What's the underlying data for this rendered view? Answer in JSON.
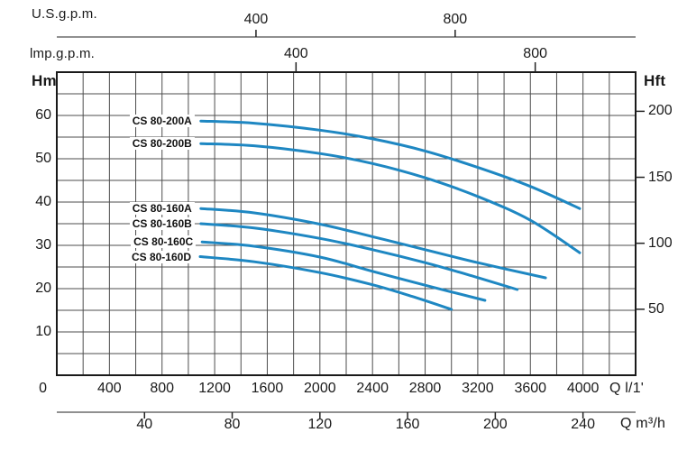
{
  "colors": {
    "curve": "#1e87c2",
    "grid": "#4d4d4d",
    "frame": "#1a1a1a",
    "tick": "#222222",
    "background": "#ffffff"
  },
  "axes": {
    "us_gpm": {
      "label": "U.S.g.p.m.",
      "ticks": [
        400,
        800
      ]
    },
    "imp_gpm": {
      "label": "lmp.g.p.m.",
      "ticks": [
        400,
        800
      ]
    },
    "head_m": {
      "label": "Hm",
      "ticks": [
        10,
        20,
        30,
        40,
        50,
        60
      ],
      "zero_label": "0"
    },
    "head_ft": {
      "label": "Hft",
      "ticks": [
        50,
        100,
        150,
        200
      ]
    },
    "flow_lmin": {
      "label": "Q l/1'",
      "ticks": [
        400,
        800,
        1200,
        1600,
        2000,
        2400,
        2800,
        3200,
        3600,
        4000
      ]
    },
    "flow_m3h": {
      "label": "Q m³/h",
      "ticks": [
        40,
        80,
        120,
        160,
        200,
        240
      ]
    }
  },
  "chart_data": {
    "type": "line",
    "title": "",
    "xlabel": "Q l/1'",
    "ylabel": "Hm",
    "x_unit": "litres per minute",
    "y_unit": "metres head",
    "xlim": [
      0,
      4400
    ],
    "ylim": [
      0,
      70
    ],
    "x_grid_step": 200,
    "y_grid_step": 5,
    "grid": true,
    "legend_position": "labels-at-curve-start",
    "secondary_x_axes": [
      {
        "label": "U.S.g.p.m.",
        "ticks": [
          400,
          800
        ],
        "lmin_per_unit": 3.78541
      },
      {
        "label": "lmp.g.p.m.",
        "ticks": [
          400,
          800
        ],
        "lmin_per_unit": 4.54609
      },
      {
        "label": "Q m³/h",
        "ticks": [
          40,
          80,
          120,
          160,
          200,
          240
        ],
        "lmin_per_unit": 16.66667
      }
    ],
    "secondary_y_axis": {
      "label": "Hft",
      "ticks": [
        50,
        100,
        150,
        200
      ],
      "m_per_unit": 0.3048
    },
    "series": [
      {
        "name": "CS 80-200A",
        "points": [
          [
            1095,
            58.7
          ],
          [
            1500,
            58.2
          ],
          [
            2000,
            56.6
          ],
          [
            2400,
            54.6
          ],
          [
            2800,
            51.8
          ],
          [
            3200,
            48.0
          ],
          [
            3600,
            43.6
          ],
          [
            3975,
            38.5
          ]
        ]
      },
      {
        "name": "CS 80-200B",
        "points": [
          [
            1095,
            53.5
          ],
          [
            1500,
            53.0
          ],
          [
            2000,
            51.2
          ],
          [
            2400,
            48.9
          ],
          [
            2800,
            45.6
          ],
          [
            3200,
            41.3
          ],
          [
            3600,
            35.8
          ],
          [
            3975,
            28.3
          ]
        ]
      },
      {
        "name": "CS 80-160A",
        "points": [
          [
            1095,
            38.5
          ],
          [
            1500,
            37.5
          ],
          [
            2000,
            34.9
          ],
          [
            2400,
            32.0
          ],
          [
            2800,
            29.0
          ],
          [
            3200,
            26.0
          ],
          [
            3715,
            22.5
          ]
        ]
      },
      {
        "name": "CS 80-160B",
        "points": [
          [
            1095,
            35.0
          ],
          [
            1500,
            34.0
          ],
          [
            2000,
            31.6
          ],
          [
            2400,
            29.0
          ],
          [
            2800,
            26.0
          ],
          [
            3150,
            23.0
          ],
          [
            3500,
            19.8
          ]
        ]
      },
      {
        "name": "CS 80-160C",
        "points": [
          [
            1105,
            30.8
          ],
          [
            1500,
            29.8
          ],
          [
            2000,
            27.3
          ],
          [
            2400,
            24.0
          ],
          [
            2800,
            20.8
          ],
          [
            3255,
            17.3
          ]
        ]
      },
      {
        "name": "CS 80-160D",
        "points": [
          [
            1090,
            27.4
          ],
          [
            1500,
            26.2
          ],
          [
            2000,
            23.7
          ],
          [
            2400,
            20.9
          ],
          [
            2700,
            18.2
          ],
          [
            3000,
            15.2
          ]
        ]
      }
    ]
  }
}
